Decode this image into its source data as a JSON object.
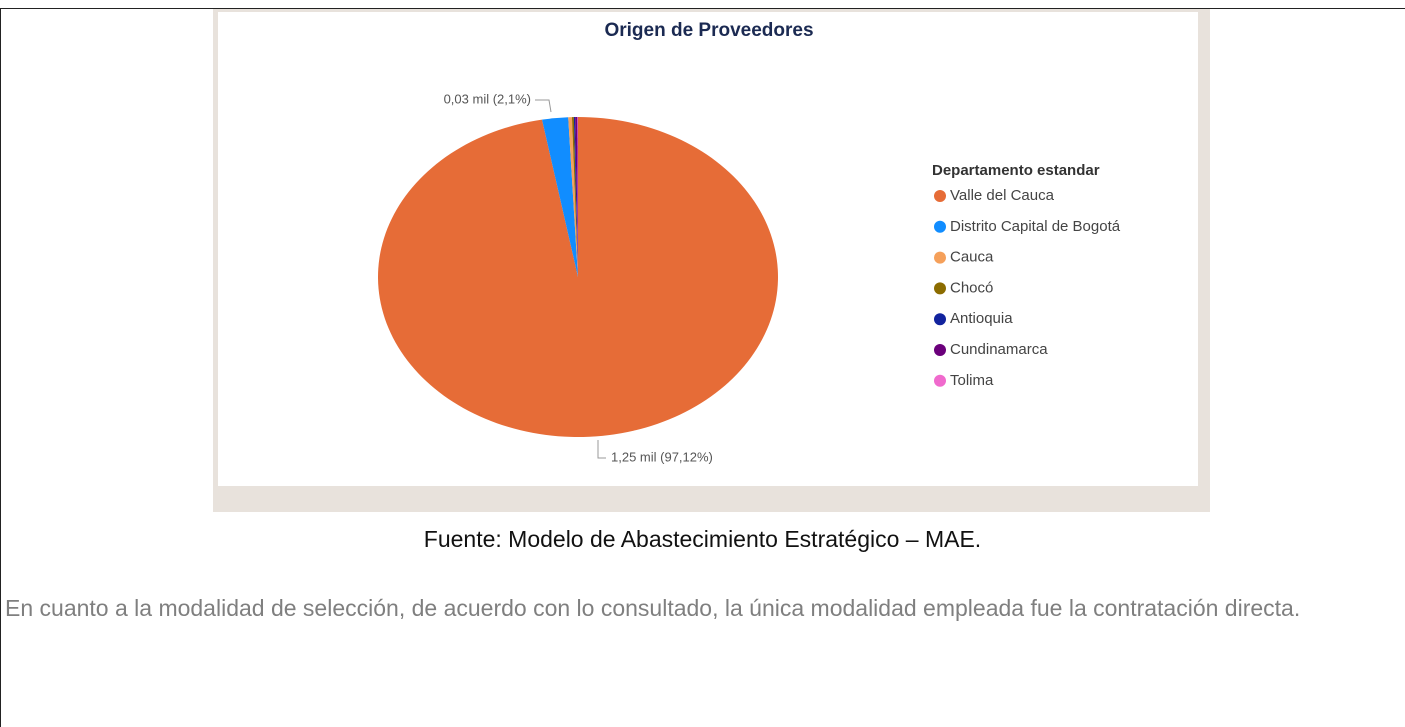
{
  "chart_data": {
    "type": "pie",
    "title": "Origen de Proveedores",
    "legend_title": "Departamento estandar",
    "categories": [
      "Valle del Cauca",
      "Distrito Capital de Bogotá",
      "Cauca",
      "Chocó",
      "Antioquia",
      "Cundinamarca",
      "Tolima"
    ],
    "values": [
      97.12,
      2.1,
      0.3,
      0.15,
      0.1,
      0.18,
      0.05
    ],
    "value_labels": [
      "1,25 mil (97,12%)",
      "0,03 mil (2,1%)",
      null,
      null,
      null,
      null,
      null
    ],
    "colors": [
      "#E66C37",
      "#118DFF",
      "#F5A05A",
      "#8C6C00",
      "#12239E",
      "#6B007B",
      "#F06ACD"
    ],
    "legend": "right"
  },
  "caption": "Fuente: Modelo de Abastecimiento Estratégico – MAE.",
  "paragraph": "En cuanto a la modalidad de selección, de acuerdo con lo consultado, la única modalidad empleada fue la contratación directa."
}
